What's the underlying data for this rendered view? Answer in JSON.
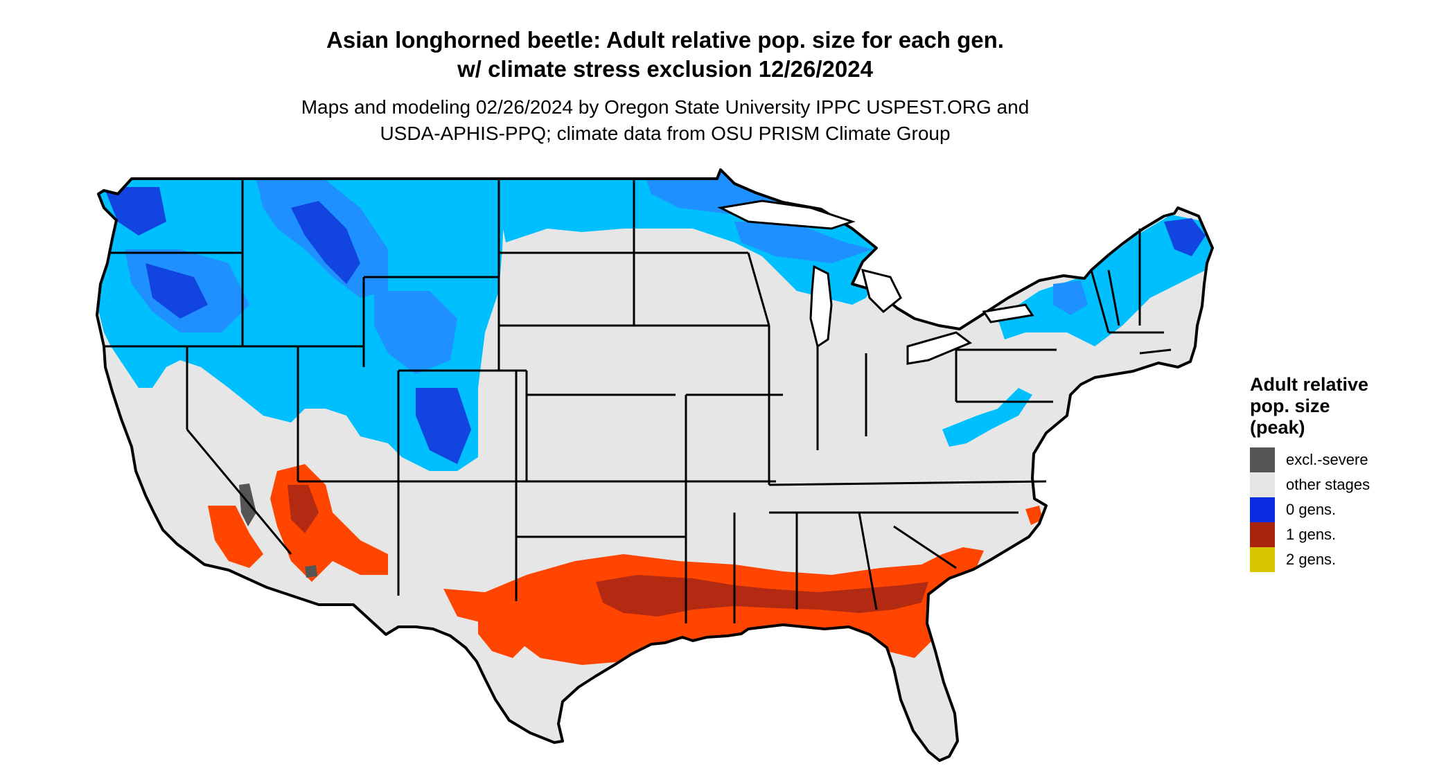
{
  "map": {
    "title_line1": "Asian longhorned beetle: Adult relative pop. size for each gen.",
    "title_line2": "w/ climate stress exclusion 12/26/2024",
    "subtitle_line1": "Maps and modeling 02/26/2024 by Oregon State University IPPC USPEST.ORG and",
    "subtitle_line2": "USDA-APHIS-PPQ; climate data from OSU PRISM Climate Group"
  },
  "legend": {
    "title_line1": "Adult relative",
    "title_line2": "pop. size",
    "title_line3": "(peak)",
    "items": [
      {
        "label": "excl.-severe",
        "color": "#555555"
      },
      {
        "label": "other stages",
        "color": "#e6e6e6"
      },
      {
        "label": "0 gens.",
        "color": "#0a2be0"
      },
      {
        "label": "1 gens.",
        "color": "#a8240f"
      },
      {
        "label": "2 gens.",
        "color": "#d9c400"
      }
    ]
  },
  "colors": {
    "land": "#e6e6e6",
    "cold_light": "#00bfff",
    "cold_mid": "#1e90ff",
    "cold_dark": "#1244e0",
    "warm_bright": "#ff4500",
    "warm_dark": "#b22a12",
    "excluded": "#555555",
    "borders": "#000000"
  }
}
